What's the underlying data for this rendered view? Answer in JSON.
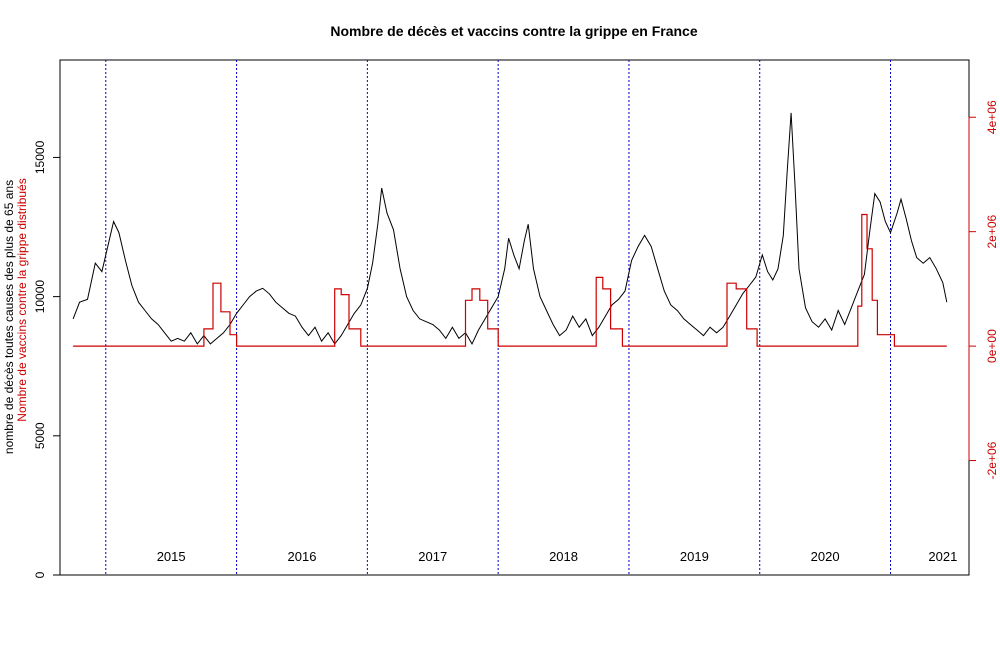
{
  "chart_data": {
    "type": "line",
    "title": "Nombre de décès et vaccins contre la grippe en France",
    "ylabel_left": "nombre de décès toutes causes des plus de 65 ans",
    "ylabel_right_overlay": "Nombre de vaccins contre la grippe distribués",
    "colors": {
      "deaths": "#000000",
      "vaccines": "#cc0000",
      "year_lines": "#0000cc",
      "right_axis": "#cc0000"
    },
    "grid": false,
    "legend": "none",
    "x_units": "years",
    "xlim": [
      2014.65,
      2021.6
    ],
    "ylim_left": [
      0,
      18500
    ],
    "ylim_right": [
      -4000000,
      5000000
    ],
    "left_ticks": [
      {
        "v": 0,
        "label": "0"
      },
      {
        "v": 5000,
        "label": "5000"
      },
      {
        "v": 10000,
        "label": "10000"
      },
      {
        "v": 15000,
        "label": "15000"
      }
    ],
    "right_ticks": [
      {
        "v": -2000000,
        "label": "-2e+06"
      },
      {
        "v": 0,
        "label": "0e+00"
      },
      {
        "v": 2000000,
        "label": "2e+06"
      },
      {
        "v": 4000000,
        "label": "4e+06"
      }
    ],
    "year_boundaries": [
      2015,
      2016,
      2017,
      2018,
      2019,
      2020,
      2021
    ],
    "year_labels": [
      {
        "x": 2015.5,
        "label": "2015"
      },
      {
        "x": 2016.5,
        "label": "2016"
      },
      {
        "x": 2017.5,
        "label": "2017"
      },
      {
        "x": 2018.5,
        "label": "2018"
      },
      {
        "x": 2019.5,
        "label": "2019"
      },
      {
        "x": 2020.5,
        "label": "2020"
      },
      {
        "x": 2021.4,
        "label": "2021"
      }
    ],
    "series": [
      {
        "key": "deaths",
        "points": [
          [
            2014.75,
            9200
          ],
          [
            2014.8,
            9800
          ],
          [
            2014.86,
            9900
          ],
          [
            2014.92,
            11200
          ],
          [
            2014.97,
            10900
          ],
          [
            2015.02,
            11900
          ],
          [
            2015.06,
            12700
          ],
          [
            2015.1,
            12300
          ],
          [
            2015.15,
            11300
          ],
          [
            2015.2,
            10400
          ],
          [
            2015.25,
            9800
          ],
          [
            2015.3,
            9500
          ],
          [
            2015.35,
            9200
          ],
          [
            2015.4,
            9000
          ],
          [
            2015.45,
            8700
          ],
          [
            2015.5,
            8400
          ],
          [
            2015.55,
            8500
          ],
          [
            2015.6,
            8400
          ],
          [
            2015.65,
            8700
          ],
          [
            2015.7,
            8300
          ],
          [
            2015.75,
            8600
          ],
          [
            2015.8,
            8300
          ],
          [
            2015.85,
            8500
          ],
          [
            2015.9,
            8700
          ],
          [
            2015.95,
            9000
          ],
          [
            2016.0,
            9400
          ],
          [
            2016.05,
            9700
          ],
          [
            2016.1,
            10000
          ],
          [
            2016.15,
            10200
          ],
          [
            2016.2,
            10300
          ],
          [
            2016.25,
            10100
          ],
          [
            2016.3,
            9800
          ],
          [
            2016.35,
            9600
          ],
          [
            2016.4,
            9400
          ],
          [
            2016.45,
            9300
          ],
          [
            2016.5,
            8900
          ],
          [
            2016.55,
            8600
          ],
          [
            2016.6,
            8900
          ],
          [
            2016.65,
            8400
          ],
          [
            2016.7,
            8700
          ],
          [
            2016.75,
            8300
          ],
          [
            2016.8,
            8600
          ],
          [
            2016.85,
            9000
          ],
          [
            2016.9,
            9400
          ],
          [
            2016.95,
            9700
          ],
          [
            2017.0,
            10300
          ],
          [
            2017.04,
            11200
          ],
          [
            2017.08,
            12600
          ],
          [
            2017.11,
            13900
          ],
          [
            2017.15,
            13000
          ],
          [
            2017.2,
            12400
          ],
          [
            2017.25,
            11000
          ],
          [
            2017.3,
            10000
          ],
          [
            2017.35,
            9500
          ],
          [
            2017.4,
            9200
          ],
          [
            2017.45,
            9100
          ],
          [
            2017.5,
            9000
          ],
          [
            2017.55,
            8800
          ],
          [
            2017.6,
            8500
          ],
          [
            2017.65,
            8900
          ],
          [
            2017.7,
            8500
          ],
          [
            2017.75,
            8700
          ],
          [
            2017.8,
            8300
          ],
          [
            2017.85,
            8800
          ],
          [
            2017.9,
            9200
          ],
          [
            2017.95,
            9600
          ],
          [
            2018.0,
            10000
          ],
          [
            2018.05,
            11000
          ],
          [
            2018.08,
            12100
          ],
          [
            2018.12,
            11500
          ],
          [
            2018.16,
            11000
          ],
          [
            2018.2,
            12000
          ],
          [
            2018.23,
            12600
          ],
          [
            2018.27,
            11000
          ],
          [
            2018.32,
            10000
          ],
          [
            2018.37,
            9500
          ],
          [
            2018.42,
            9000
          ],
          [
            2018.47,
            8600
          ],
          [
            2018.52,
            8800
          ],
          [
            2018.57,
            9300
          ],
          [
            2018.62,
            8900
          ],
          [
            2018.67,
            9200
          ],
          [
            2018.72,
            8600
          ],
          [
            2018.77,
            8900
          ],
          [
            2018.82,
            9300
          ],
          [
            2018.87,
            9700
          ],
          [
            2018.92,
            9900
          ],
          [
            2018.97,
            10200
          ],
          [
            2019.02,
            11300
          ],
          [
            2019.07,
            11800
          ],
          [
            2019.12,
            12200
          ],
          [
            2019.17,
            11800
          ],
          [
            2019.22,
            11000
          ],
          [
            2019.27,
            10200
          ],
          [
            2019.32,
            9700
          ],
          [
            2019.37,
            9500
          ],
          [
            2019.42,
            9200
          ],
          [
            2019.47,
            9000
          ],
          [
            2019.52,
            8800
          ],
          [
            2019.57,
            8600
          ],
          [
            2019.62,
            8900
          ],
          [
            2019.67,
            8700
          ],
          [
            2019.72,
            8900
          ],
          [
            2019.77,
            9300
          ],
          [
            2019.82,
            9700
          ],
          [
            2019.87,
            10100
          ],
          [
            2019.92,
            10400
          ],
          [
            2019.97,
            10700
          ],
          [
            2020.02,
            11500
          ],
          [
            2020.06,
            10900
          ],
          [
            2020.1,
            10600
          ],
          [
            2020.14,
            11000
          ],
          [
            2020.18,
            12200
          ],
          [
            2020.21,
            14500
          ],
          [
            2020.24,
            16600
          ],
          [
            2020.27,
            14000
          ],
          [
            2020.3,
            11000
          ],
          [
            2020.35,
            9600
          ],
          [
            2020.4,
            9100
          ],
          [
            2020.45,
            8900
          ],
          [
            2020.5,
            9200
          ],
          [
            2020.55,
            8800
          ],
          [
            2020.6,
            9500
          ],
          [
            2020.65,
            9000
          ],
          [
            2020.7,
            9600
          ],
          [
            2020.75,
            10200
          ],
          [
            2020.8,
            10800
          ],
          [
            2020.84,
            12300
          ],
          [
            2020.88,
            13700
          ],
          [
            2020.92,
            13400
          ],
          [
            2020.96,
            12700
          ],
          [
            2021.0,
            12300
          ],
          [
            2021.05,
            13000
          ],
          [
            2021.08,
            13500
          ],
          [
            2021.12,
            12800
          ],
          [
            2021.16,
            12000
          ],
          [
            2021.2,
            11400
          ],
          [
            2021.25,
            11200
          ],
          [
            2021.3,
            11400
          ],
          [
            2021.35,
            11000
          ],
          [
            2021.4,
            10500
          ],
          [
            2021.43,
            9800
          ]
        ]
      },
      {
        "key": "vaccines",
        "points": [
          [
            2014.75,
            0
          ],
          [
            2015.75,
            0
          ],
          [
            2015.75,
            300000
          ],
          [
            2015.82,
            300000
          ],
          [
            2015.82,
            1100000
          ],
          [
            2015.88,
            1100000
          ],
          [
            2015.88,
            600000
          ],
          [
            2015.95,
            600000
          ],
          [
            2015.95,
            200000
          ],
          [
            2016.0,
            200000
          ],
          [
            2016.0,
            0
          ],
          [
            2016.75,
            0
          ],
          [
            2016.75,
            1000000
          ],
          [
            2016.8,
            1000000
          ],
          [
            2016.8,
            900000
          ],
          [
            2016.86,
            900000
          ],
          [
            2016.86,
            300000
          ],
          [
            2016.95,
            300000
          ],
          [
            2016.95,
            0
          ],
          [
            2017.75,
            0
          ],
          [
            2017.75,
            800000
          ],
          [
            2017.8,
            800000
          ],
          [
            2017.8,
            1000000
          ],
          [
            2017.86,
            1000000
          ],
          [
            2017.86,
            800000
          ],
          [
            2017.92,
            800000
          ],
          [
            2017.92,
            300000
          ],
          [
            2018.0,
            300000
          ],
          [
            2018.0,
            0
          ],
          [
            2018.75,
            0
          ],
          [
            2018.75,
            1200000
          ],
          [
            2018.8,
            1200000
          ],
          [
            2018.8,
            1000000
          ],
          [
            2018.86,
            1000000
          ],
          [
            2018.86,
            300000
          ],
          [
            2018.95,
            300000
          ],
          [
            2018.95,
            0
          ],
          [
            2019.75,
            0
          ],
          [
            2019.75,
            1100000
          ],
          [
            2019.82,
            1100000
          ],
          [
            2019.82,
            1000000
          ],
          [
            2019.9,
            1000000
          ],
          [
            2019.9,
            300000
          ],
          [
            2019.98,
            300000
          ],
          [
            2019.98,
            0
          ],
          [
            2020.75,
            0
          ],
          [
            2020.75,
            700000
          ],
          [
            2020.78,
            700000
          ],
          [
            2020.78,
            2300000
          ],
          [
            2020.82,
            2300000
          ],
          [
            2020.82,
            1700000
          ],
          [
            2020.86,
            1700000
          ],
          [
            2020.86,
            800000
          ],
          [
            2020.9,
            800000
          ],
          [
            2020.9,
            200000
          ],
          [
            2021.03,
            200000
          ],
          [
            2021.03,
            0
          ],
          [
            2021.43,
            0
          ]
        ]
      }
    ]
  }
}
